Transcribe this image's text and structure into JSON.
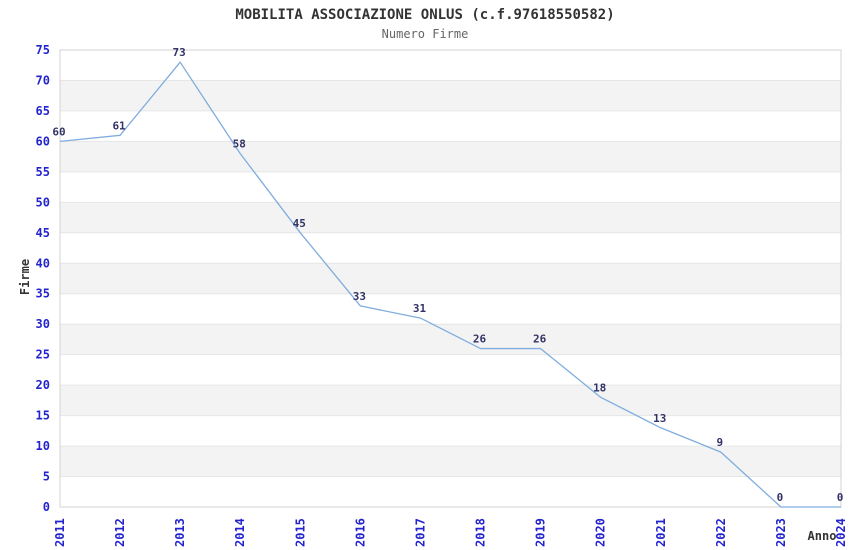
{
  "chart_data": {
    "type": "line",
    "title": "MOBILITA ASSOCIAZIONE ONLUS (c.f.97618550582)",
    "subtitle": "Numero Firme",
    "x": [
      "2011",
      "2012",
      "2013",
      "2014",
      "2015",
      "2016",
      "2017",
      "2018",
      "2019",
      "2020",
      "2021",
      "2022",
      "2023",
      "2024"
    ],
    "values": [
      60,
      61,
      73,
      58,
      45,
      33,
      31,
      26,
      26,
      18,
      13,
      9,
      0,
      0
    ],
    "xlabel": "Anno",
    "ylabel": "Firme",
    "ylim": [
      0,
      75
    ],
    "ytick_step": 5,
    "grid": "horizontal",
    "banded_background": true,
    "legend": "none",
    "data_labels": true,
    "colors": {
      "line": "#7fadde",
      "tick_label": "#2424cf",
      "data_label": "#333366",
      "band_gray": "#f3f3f3",
      "band_white": "#ffffff",
      "gridline": "#e6e6e6",
      "plot_border": "#d3d3d3",
      "title": "#333333",
      "subtitle": "#666666",
      "axis_title": "#333333"
    }
  }
}
